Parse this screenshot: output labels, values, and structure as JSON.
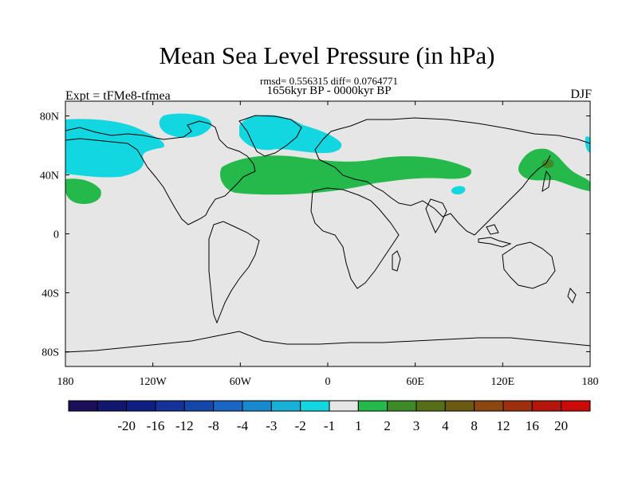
{
  "header": {
    "title": "Mean Sea Level Pressure (in hPa)",
    "stats": "rmsd= 0.556315 diff= 0.0764771",
    "period": "1656kyr BP - 0000kyr BP",
    "experiment": "Expt = tFMe8-tfmea",
    "season": "DJF"
  },
  "chart_data": {
    "type": "heatmap",
    "title": "Mean Sea Level Pressure (in hPa)",
    "projection": "cylindrical equidistant",
    "x_range": [
      -180,
      180
    ],
    "y_range": [
      -90,
      90
    ],
    "x_ticks": [
      {
        "value": -180,
        "label": "180"
      },
      {
        "value": -120,
        "label": "120W"
      },
      {
        "value": -60,
        "label": "60W"
      },
      {
        "value": 0,
        "label": "0"
      },
      {
        "value": 60,
        "label": "60E"
      },
      {
        "value": 120,
        "label": "120E"
      },
      {
        "value": 180,
        "label": "180"
      }
    ],
    "y_ticks": [
      {
        "value": 80,
        "label": "80N"
      },
      {
        "value": 40,
        "label": "40N"
      },
      {
        "value": 0,
        "label": "0"
      },
      {
        "value": -40,
        "label": "40S"
      },
      {
        "value": -80,
        "label": "80S"
      }
    ],
    "colorbar": {
      "colors": [
        "#1c0e58",
        "#12176e",
        "#101e82",
        "#14329a",
        "#1546aa",
        "#1b66c4",
        "#1789cc",
        "#18b0d8",
        "#12d6e0",
        "#e6e6e6",
        "#25b84a",
        "#3f8a28",
        "#566e18",
        "#6b5a12",
        "#8a4710",
        "#9e2f0e",
        "#b4160c",
        "#cc0a0a"
      ],
      "labels": [
        "-20",
        "-16",
        "-12",
        "-8",
        "-4",
        "-3",
        "-2",
        "-1",
        "1",
        "2",
        "3",
        "4",
        "8",
        "12",
        "16",
        "20"
      ]
    },
    "anomaly_regions": [
      {
        "name": "north-pacific-negative",
        "range": "-2 to -1",
        "color": "#12d6e0"
      },
      {
        "name": "north-america-negative",
        "range": "-2 to -1",
        "color": "#12d6e0"
      },
      {
        "name": "greenland-arctic-negative",
        "range": "-2 to -1",
        "color": "#12d6e0"
      },
      {
        "name": "tibet-negative",
        "range": "-2 to -1",
        "color": "#12d6e0"
      },
      {
        "name": "east-pacific-positive",
        "range": "1 to 2",
        "color": "#25b84a"
      },
      {
        "name": "atlantic-eurasia-positive",
        "range": "1 to 2",
        "color": "#25b84a"
      },
      {
        "name": "northwest-pacific-positive",
        "range": "1 to 2",
        "color": "#25b84a"
      },
      {
        "name": "kuril-positive",
        "range": "2 to 3",
        "color": "#3f8a28"
      }
    ]
  }
}
